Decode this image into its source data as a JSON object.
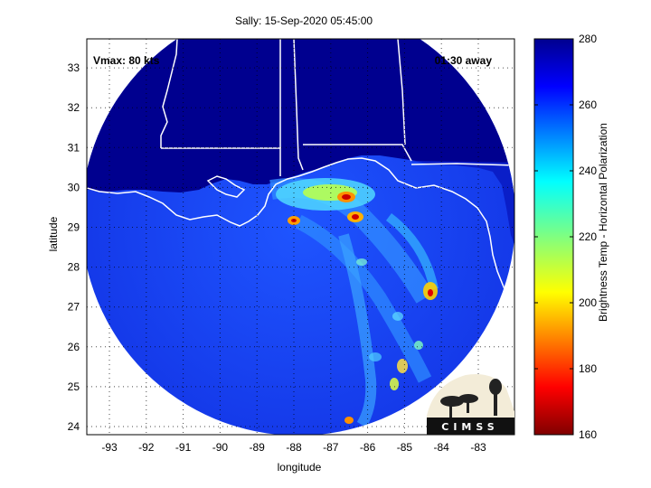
{
  "title": "Sally: 15-Sep-2020 05:45:00",
  "annotations": {
    "vmax": "Vmax: 80 kts",
    "time_away": "01:30 away"
  },
  "axes": {
    "xlabel": "longitude",
    "ylabel": "latitude",
    "xticks": [
      "-93",
      "-92",
      "-91",
      "-90",
      "-89",
      "-88",
      "-87",
      "-86",
      "-85",
      "-84",
      "-83"
    ],
    "yticks": [
      "24",
      "25",
      "26",
      "27",
      "28",
      "29",
      "30",
      "31",
      "32",
      "33"
    ]
  },
  "colorbar": {
    "label": "Brightness Temp - Horizontal Polarization",
    "ticks": [
      "160",
      "180",
      "200",
      "220",
      "240",
      "260",
      "280"
    ],
    "range": [
      160,
      280
    ],
    "colormap": "jet"
  },
  "logo": {
    "text": "CIMSS"
  },
  "colors": {
    "land": "#00008f",
    "ocean": "#1a4dff",
    "coast": "#ffffff"
  }
}
